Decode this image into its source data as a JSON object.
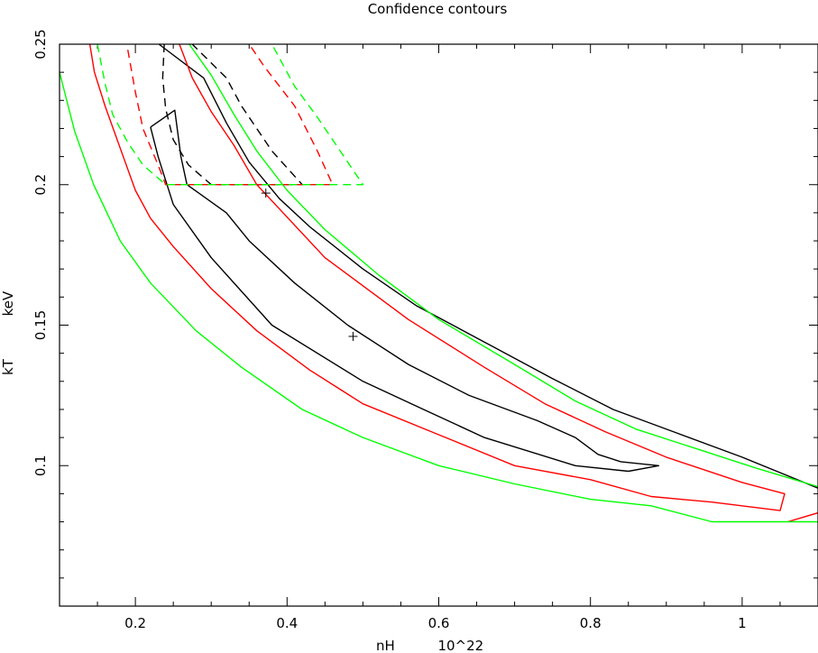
{
  "chart_data": {
    "type": "line",
    "title": "Confidence contours",
    "xlabel": "nH          10^22",
    "ylabel": "kT          keV",
    "xlim": [
      0.1,
      1.1
    ],
    "ylim": [
      0.05,
      0.25
    ],
    "x_ticks": [
      0.2,
      0.4,
      0.6,
      0.8,
      1.0
    ],
    "x_tick_labels": [
      "0.2",
      "0.4",
      "0.6",
      "0.8",
      "1"
    ],
    "y_ticks": [
      0.1,
      0.15,
      0.2,
      0.25
    ],
    "y_tick_labels": [
      "0.1",
      "0.15",
      "0.2",
      "0.25"
    ],
    "grid": false,
    "legend": "none",
    "colors": {
      "black": "#000000",
      "red": "#ff0000",
      "green": "#00ff00"
    },
    "best_fit_points": [
      {
        "x": 0.372,
        "y": 0.197
      },
      {
        "x": 0.487,
        "y": 0.146
      }
    ],
    "series": [
      {
        "color": "#000000",
        "dash": "solid",
        "points": [
          [
            0.22,
            0.2205
          ],
          [
            0.252,
            0.2265
          ],
          [
            0.26,
            0.21
          ],
          [
            0.268,
            0.2
          ],
          [
            0.32,
            0.19
          ],
          [
            0.35,
            0.18
          ],
          [
            0.41,
            0.165
          ],
          [
            0.48,
            0.15
          ],
          [
            0.56,
            0.136
          ],
          [
            0.64,
            0.125
          ],
          [
            0.73,
            0.116
          ],
          [
            0.78,
            0.11
          ],
          [
            0.81,
            0.104
          ],
          [
            0.84,
            0.1014
          ],
          [
            0.89,
            0.1
          ],
          [
            0.85,
            0.098
          ],
          [
            0.78,
            0.1
          ],
          [
            0.66,
            0.11
          ],
          [
            0.58,
            0.12
          ],
          [
            0.5,
            0.13
          ],
          [
            0.38,
            0.15
          ],
          [
            0.3,
            0.174
          ],
          [
            0.25,
            0.193
          ],
          [
            0.23,
            0.21
          ],
          [
            0.22,
            0.2205
          ]
        ]
      },
      {
        "color": "#000000",
        "dash": "solid",
        "points": [
          [
            0.231,
            0.25
          ],
          [
            0.29,
            0.238
          ],
          [
            0.32,
            0.222
          ],
          [
            0.35,
            0.208
          ],
          [
            0.39,
            0.195
          ],
          [
            0.43,
            0.185
          ],
          [
            0.5,
            0.17
          ],
          [
            0.57,
            0.157
          ],
          [
            0.66,
            0.144
          ],
          [
            0.75,
            0.131
          ],
          [
            0.83,
            0.12
          ],
          [
            0.91,
            0.112
          ],
          [
            1.0,
            0.103
          ],
          [
            1.1,
            0.092
          ]
        ]
      },
      {
        "color": "#ff0000",
        "dash": "solid",
        "points": [
          [
            0.14,
            0.25
          ],
          [
            0.146,
            0.24
          ],
          [
            0.16,
            0.228
          ],
          [
            0.18,
            0.213
          ],
          [
            0.2,
            0.198
          ],
          [
            0.22,
            0.188
          ],
          [
            0.25,
            0.178
          ],
          [
            0.3,
            0.163
          ],
          [
            0.36,
            0.148
          ],
          [
            0.43,
            0.134
          ],
          [
            0.5,
            0.122
          ],
          [
            0.6,
            0.111
          ],
          [
            0.7,
            0.1
          ],
          [
            0.8,
            0.095
          ],
          [
            0.88,
            0.089
          ],
          [
            0.96,
            0.087
          ],
          [
            1.05,
            0.084
          ],
          [
            1.056,
            0.09
          ],
          [
            1.0,
            0.094
          ],
          [
            0.9,
            0.103
          ],
          [
            0.82,
            0.112
          ],
          [
            0.74,
            0.122
          ],
          [
            0.66,
            0.135
          ],
          [
            0.56,
            0.152
          ],
          [
            0.45,
            0.174
          ],
          [
            0.36,
            0.2
          ],
          [
            0.33,
            0.214
          ],
          [
            0.3,
            0.226
          ],
          [
            0.275,
            0.238
          ],
          [
            0.258,
            0.25
          ]
        ]
      },
      {
        "color": "#ff0000",
        "dash": "solid",
        "points": [
          [
            1.06,
            0.08
          ],
          [
            1.1,
            0.0832
          ]
        ]
      },
      {
        "color": "#00ff00",
        "dash": "solid",
        "points": [
          [
            0.1,
            0.24
          ],
          [
            0.12,
            0.219
          ],
          [
            0.145,
            0.2
          ],
          [
            0.18,
            0.18
          ],
          [
            0.22,
            0.165
          ],
          [
            0.28,
            0.148
          ],
          [
            0.34,
            0.135
          ],
          [
            0.42,
            0.12
          ],
          [
            0.5,
            0.11
          ],
          [
            0.6,
            0.1
          ],
          [
            0.7,
            0.0935
          ],
          [
            0.8,
            0.088
          ],
          [
            0.88,
            0.0857
          ],
          [
            0.96,
            0.08
          ],
          [
            1.1,
            0.08
          ]
        ]
      },
      {
        "color": "#00ff00",
        "dash": "solid",
        "points": [
          [
            0.271,
            0.25
          ],
          [
            0.3,
            0.239
          ],
          [
            0.33,
            0.225
          ],
          [
            0.36,
            0.212
          ],
          [
            0.4,
            0.198
          ],
          [
            0.45,
            0.184
          ],
          [
            0.52,
            0.168
          ],
          [
            0.6,
            0.152
          ],
          [
            0.7,
            0.136
          ],
          [
            0.78,
            0.123
          ],
          [
            0.86,
            0.113
          ],
          [
            0.94,
            0.106
          ],
          [
            1.02,
            0.099
          ],
          [
            1.1,
            0.0925
          ]
        ]
      },
      {
        "color": "#000000",
        "dash": "dashed",
        "points": [
          [
            0.238,
            0.25
          ],
          [
            0.236,
            0.238
          ],
          [
            0.24,
            0.227
          ],
          [
            0.25,
            0.216
          ],
          [
            0.27,
            0.207
          ],
          [
            0.3,
            0.2
          ],
          [
            0.345,
            0.2
          ],
          [
            0.42,
            0.2
          ],
          [
            0.38,
            0.212
          ],
          [
            0.34,
            0.228
          ],
          [
            0.32,
            0.238
          ],
          [
            0.29,
            0.246
          ],
          [
            0.275,
            0.25
          ]
        ]
      },
      {
        "color": "#ff0000",
        "dash": "dashed",
        "points": [
          [
            0.19,
            0.248
          ],
          [
            0.2,
            0.233
          ],
          [
            0.21,
            0.22
          ],
          [
            0.23,
            0.207
          ],
          [
            0.24,
            0.2
          ],
          [
            0.28,
            0.2
          ],
          [
            0.46,
            0.2
          ],
          [
            0.44,
            0.212
          ],
          [
            0.41,
            0.228
          ],
          [
            0.37,
            0.242
          ],
          [
            0.35,
            0.25
          ]
        ]
      },
      {
        "color": "#00ff00",
        "dash": "dashed",
        "points": [
          [
            0.15,
            0.25
          ],
          [
            0.16,
            0.236
          ],
          [
            0.17,
            0.225
          ],
          [
            0.19,
            0.215
          ],
          [
            0.21,
            0.207
          ],
          [
            0.24,
            0.2
          ],
          [
            0.3,
            0.2
          ],
          [
            0.5,
            0.2
          ],
          [
            0.47,
            0.212
          ],
          [
            0.44,
            0.224
          ],
          [
            0.41,
            0.235
          ],
          [
            0.39,
            0.245
          ],
          [
            0.38,
            0.25
          ]
        ]
      }
    ]
  }
}
